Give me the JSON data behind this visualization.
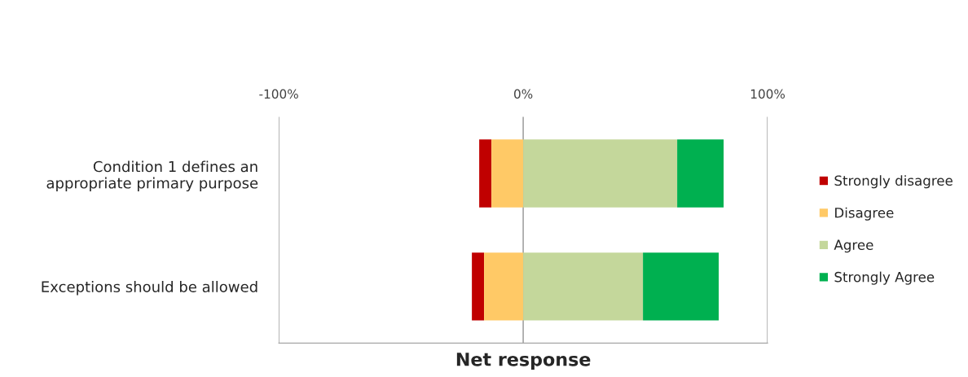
{
  "chart_data": {
    "type": "bar",
    "orientation": "horizontal",
    "xlabel": "Net response",
    "categories": [
      "Condition 1 defines an\nappropriate primary purpose",
      "Exceptions should be allowed"
    ],
    "series": [
      {
        "name": "Strongly disagree",
        "color": "#c00000",
        "values": [
          5,
          5
        ],
        "base": [
          -18,
          -21
        ]
      },
      {
        "name": "Disagree",
        "color": "#ffc966",
        "values": [
          13,
          16
        ],
        "base": [
          -13,
          -16
        ]
      },
      {
        "name": "Agree",
        "color": "#c4d79b",
        "values": [
          63,
          49
        ],
        "base": [
          0,
          0
        ]
      },
      {
        "name": "Strongly Agree",
        "color": "#00b050",
        "values": [
          19,
          31
        ],
        "base": [
          63,
          49
        ]
      }
    ],
    "xlim": [
      -100,
      100
    ],
    "xticks": [
      {
        "value": -100,
        "label": "-100%"
      },
      {
        "value": 0,
        "label": "0%"
      },
      {
        "value": 100,
        "label": "100%"
      }
    ],
    "grid": "x",
    "legend": "right"
  }
}
